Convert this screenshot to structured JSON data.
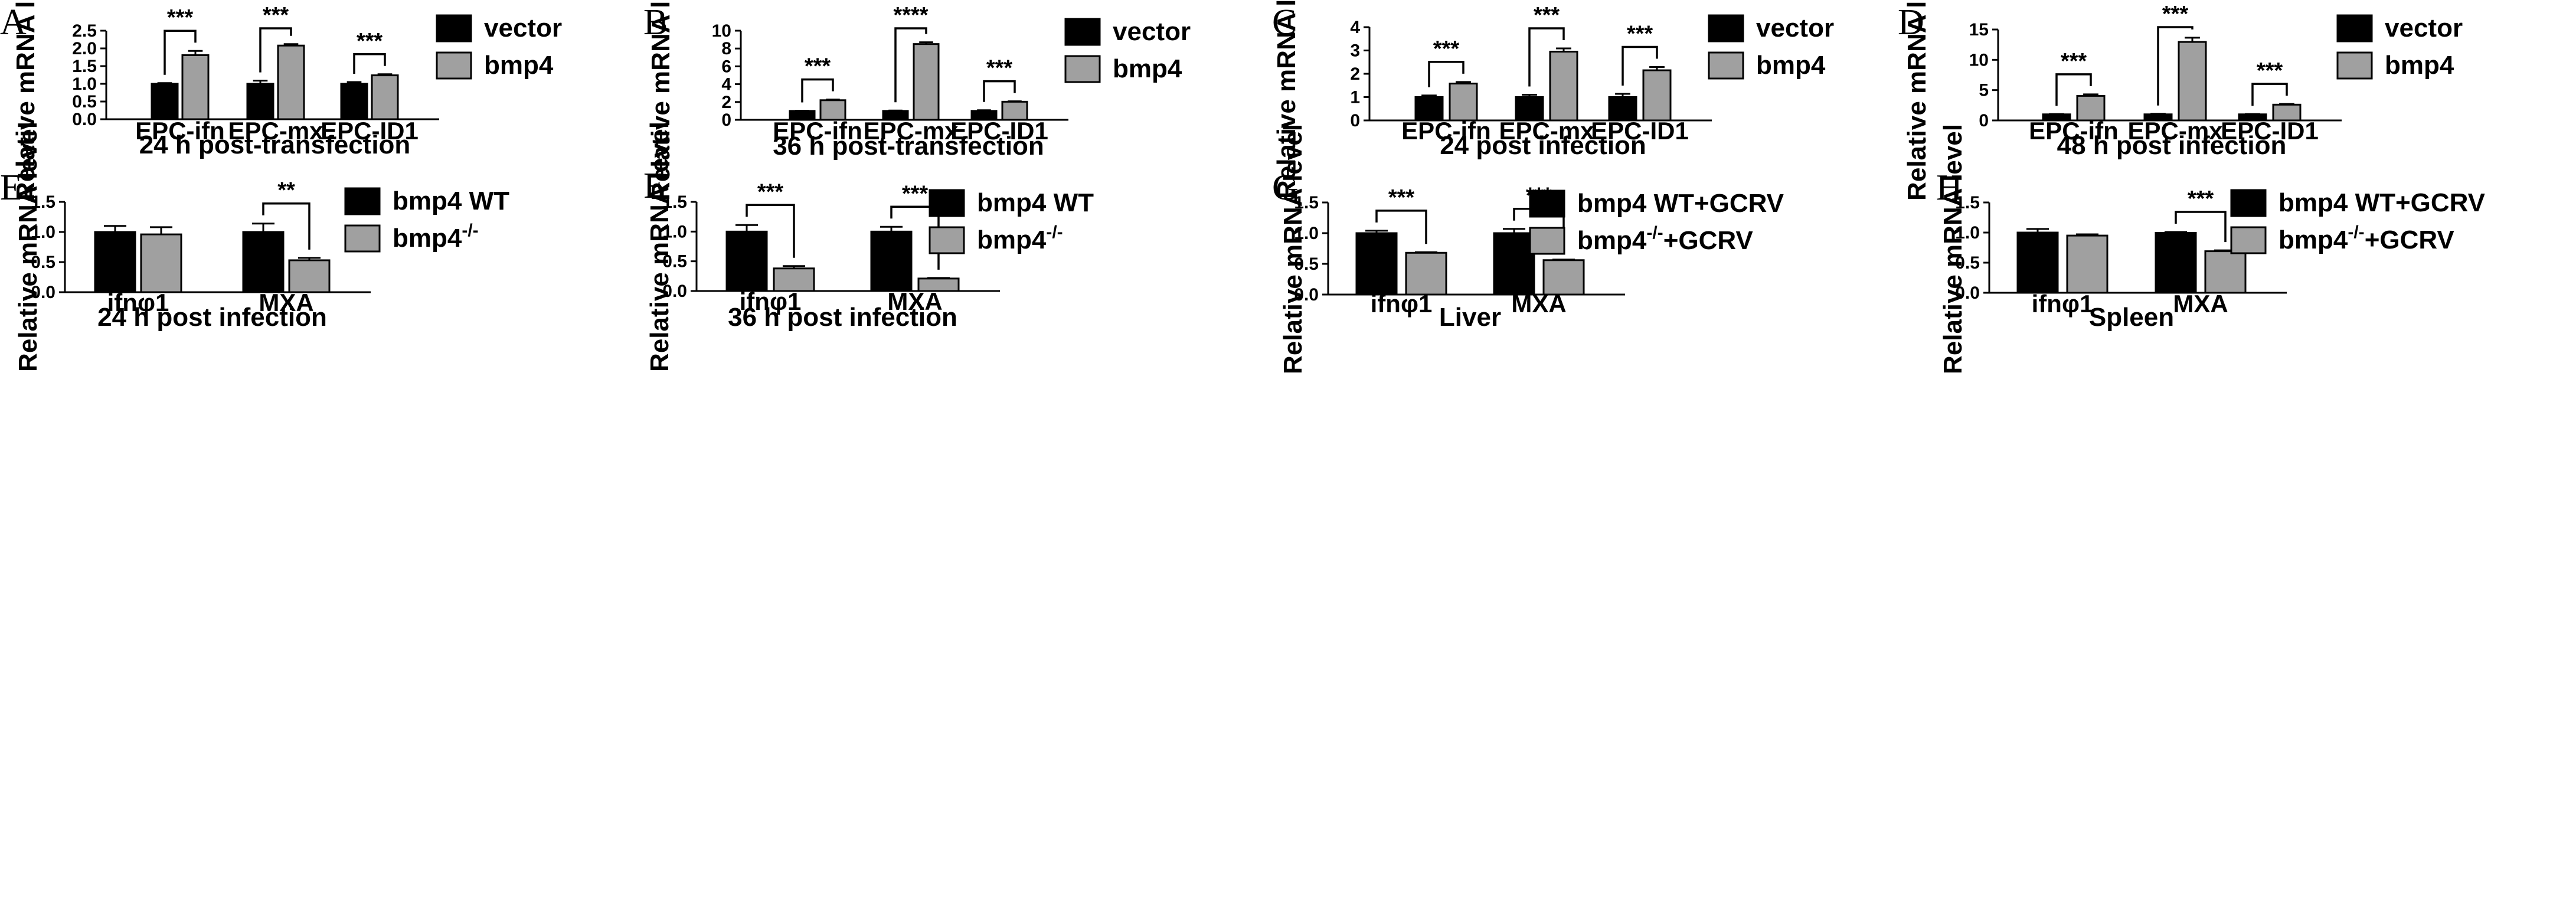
{
  "colors": {
    "series0": "#000000",
    "series1": "#a0a0a0"
  },
  "chart_data": [
    {
      "panel": "A",
      "type": "bar",
      "ylabel": "Relative mRNA level",
      "xlabel": "24 h post-transfection",
      "ylim": [
        0,
        2.5
      ],
      "yticks": [
        "0.0",
        "0.5",
        "1.0",
        "1.5",
        "2.0",
        "2.5"
      ],
      "ytick_values": [
        0,
        0.5,
        1,
        1.5,
        2,
        2.5
      ],
      "categories": [
        "EPC-ifn",
        "EPC-mx",
        "EPC-ID1"
      ],
      "series": [
        {
          "name": "vector",
          "values": [
            1.0,
            1.0,
            1.0
          ],
          "errors": [
            0.02,
            0.09,
            0.05
          ]
        },
        {
          "name": "bmp4",
          "values": [
            1.81,
            2.08,
            1.24
          ],
          "errors": [
            0.12,
            0.04,
            0.03
          ]
        }
      ],
      "significance": [
        "***",
        "***",
        "***"
      ]
    },
    {
      "panel": "B",
      "type": "bar",
      "ylabel": "Relative mRNA level",
      "xlabel": "36 h post-transfection",
      "ylim": [
        0,
        10
      ],
      "yticks": [
        "0",
        "2",
        "4",
        "6",
        "8",
        "10"
      ],
      "ytick_values": [
        0,
        2,
        4,
        6,
        8,
        10
      ],
      "categories": [
        "EPC-ifn",
        "EPC-mx",
        "EPC-ID1"
      ],
      "series": [
        {
          "name": "vector",
          "values": [
            1.0,
            1.0,
            1.0
          ],
          "errors": [
            0.03,
            0.04,
            0.08
          ]
        },
        {
          "name": "bmp4",
          "values": [
            2.2,
            8.5,
            2.03
          ],
          "errors": [
            0.08,
            0.2,
            0.05
          ]
        }
      ],
      "significance": [
        "***",
        "****",
        "***"
      ]
    },
    {
      "panel": "C",
      "type": "bar",
      "ylabel": "Relative mRNA level",
      "xlabel": "24 post infection",
      "ylim": [
        0,
        4
      ],
      "yticks": [
        "0",
        "1",
        "2",
        "3",
        "4"
      ],
      "ytick_values": [
        0,
        1,
        2,
        3,
        4
      ],
      "categories": [
        "EPC-ifn",
        "EPC-mx",
        "EPC-ID1"
      ],
      "series": [
        {
          "name": "vector",
          "values": [
            1.0,
            1.0,
            1.0
          ],
          "errors": [
            0.07,
            0.1,
            0.14
          ]
        },
        {
          "name": "bmp4",
          "values": [
            1.58,
            2.95,
            2.15
          ],
          "errors": [
            0.07,
            0.14,
            0.14
          ]
        }
      ],
      "significance": [
        "***",
        "***",
        "***"
      ]
    },
    {
      "panel": "D",
      "type": "bar",
      "ylabel": "Relative mRNA level",
      "xlabel": "48 h post infection",
      "ylim": [
        0,
        15
      ],
      "yticks": [
        "0",
        "5",
        "10",
        "15"
      ],
      "ytick_values": [
        0,
        5,
        10,
        15
      ],
      "categories": [
        "EPC-ifn",
        "EPC-mx",
        "EPC-ID1"
      ],
      "series": [
        {
          "name": "vector",
          "values": [
            1.0,
            1.0,
            1.0
          ],
          "errors": [
            0.05,
            0.1,
            0.05
          ]
        },
        {
          "name": "bmp4",
          "values": [
            4.05,
            12.95,
            2.6
          ],
          "errors": [
            0.25,
            0.7,
            0.12
          ]
        }
      ],
      "significance": [
        "***",
        "***",
        "***"
      ]
    },
    {
      "panel": "E",
      "type": "bar",
      "ylabel": "Relative mRNA level",
      "xlabel": "24 h post infection",
      "ylim": [
        0,
        1.5
      ],
      "yticks": [
        "0.0",
        "0.5",
        "1.0",
        "1.5"
      ],
      "ytick_values": [
        0,
        0.5,
        1,
        1.5
      ],
      "categories": [
        "ifnφ1",
        "MXA"
      ],
      "series": [
        {
          "name": "bmp4 WT",
          "values": [
            1.0,
            1.0
          ],
          "errors": [
            0.1,
            0.14
          ]
        },
        {
          "name": "bmp4",
          "superscript": "-/-",
          "values": [
            0.96,
            0.53
          ],
          "errors": [
            0.12,
            0.04
          ]
        }
      ],
      "significance": [
        "",
        "**"
      ]
    },
    {
      "panel": "F",
      "type": "bar",
      "ylabel": "Relative mRNA level",
      "xlabel": "36 h post infection",
      "ylim": [
        0,
        1.5
      ],
      "yticks": [
        "0.0",
        "0.5",
        "1.0",
        "1.5"
      ],
      "ytick_values": [
        0,
        0.5,
        1,
        1.5
      ],
      "categories": [
        "ifnφ1",
        "MXA"
      ],
      "series": [
        {
          "name": "bmp4 WT",
          "values": [
            1.0,
            1.0
          ],
          "errors": [
            0.11,
            0.08
          ]
        },
        {
          "name": "bmp4",
          "superscript": "-/-",
          "values": [
            0.38,
            0.21
          ],
          "errors": [
            0.04,
            0.01
          ]
        }
      ],
      "significance": [
        "***",
        "***"
      ]
    },
    {
      "panel": "G",
      "type": "bar",
      "ylabel": "Relative mRNA level",
      "xlabel": "Liver",
      "ylim": [
        0,
        1.5
      ],
      "yticks": [
        "0.0",
        "0.5",
        "1.0",
        "1.5"
      ],
      "ytick_values": [
        0,
        0.5,
        1,
        1.5
      ],
      "categories": [
        "ifnφ1",
        "MXA"
      ],
      "series": [
        {
          "name": "bmp4 WT+GCRV",
          "values": [
            1.0,
            1.0
          ],
          "errors": [
            0.04,
            0.07
          ]
        },
        {
          "name": "bmp4",
          "superscript": "-/-",
          "suffix": "+GCRV",
          "values": [
            0.68,
            0.56
          ],
          "errors": [
            0.01,
            0.01
          ]
        }
      ],
      "significance": [
        "***",
        "***"
      ]
    },
    {
      "panel": "H",
      "type": "bar",
      "ylabel": "Relative mRNA level",
      "xlabel": "Spleen",
      "ylim": [
        0,
        1.5
      ],
      "yticks": [
        "0.0",
        "0.5",
        "1.0",
        "1.5"
      ],
      "ytick_values": [
        0,
        0.5,
        1,
        1.5
      ],
      "categories": [
        "ifnφ1",
        "MXA"
      ],
      "series": [
        {
          "name": "bmp4 WT+GCRV",
          "values": [
            1.0,
            0.995
          ],
          "errors": [
            0.06,
            0.015
          ]
        },
        {
          "name": "bmp4",
          "superscript": "-/-",
          "suffix": "+GCRV",
          "values": [
            0.95,
            0.69
          ],
          "errors": [
            0.02,
            0.015
          ]
        }
      ],
      "significance": [
        "",
        "***"
      ]
    }
  ]
}
